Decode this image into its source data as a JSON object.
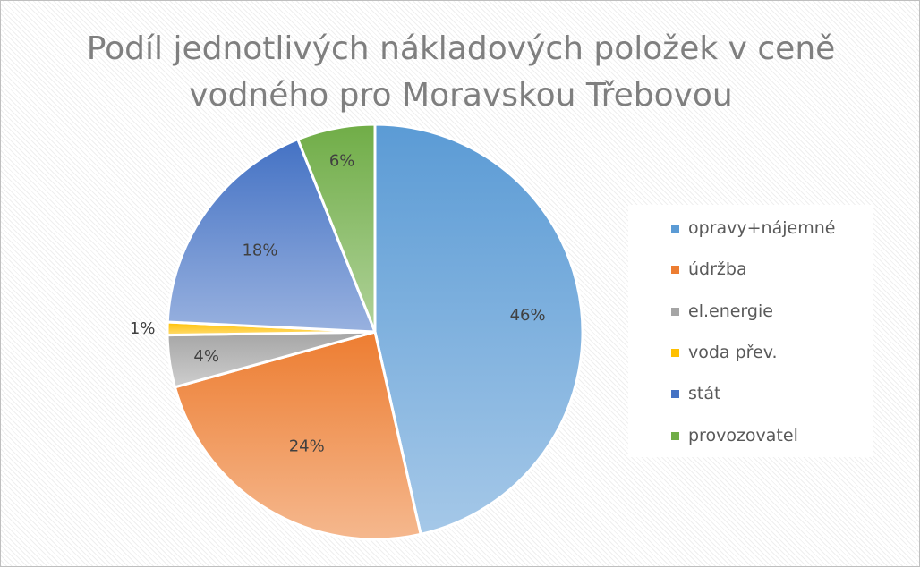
{
  "chart_data": {
    "type": "pie",
    "title_lines": [
      "Podíl jednotlivých nákladových položek v ceně",
      "vodného pro Moravskou Třebovou"
    ],
    "categories": [
      "opravy+nájemné",
      "údržba",
      "el.energie",
      "voda přev.",
      "stát",
      "provozovatel"
    ],
    "values": [
      46,
      24,
      4,
      1,
      18,
      6
    ],
    "data_labels": [
      "46%",
      "24%",
      "4%",
      "1%",
      "18%",
      "6%"
    ],
    "colors": [
      "#5b9bd5",
      "#ed7d31",
      "#a5a5a5",
      "#ffc000",
      "#4472c4",
      "#70ad47"
    ],
    "legend_position": "right"
  }
}
